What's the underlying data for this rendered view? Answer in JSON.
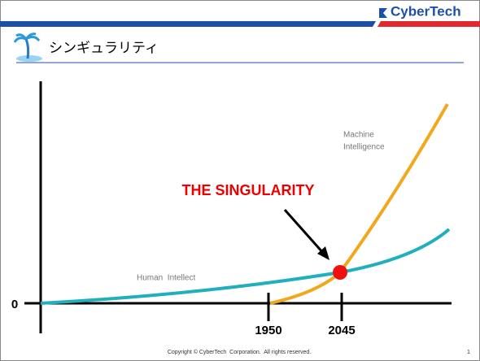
{
  "header": {
    "brand": "CyberTech",
    "title": "シンギュラリティ"
  },
  "diagram": {
    "y_origin_label": "0",
    "x_labels": [
      "1950",
      "2045"
    ],
    "highlight": "THE SINGULARITY",
    "machine_label": [
      "Machine",
      "Intelligence"
    ],
    "human_label": "Human  Intellect"
  },
  "footer": {
    "copyright": "Copyright © CyberTech  Corporation.  All rights reserved.",
    "page": "1"
  }
}
